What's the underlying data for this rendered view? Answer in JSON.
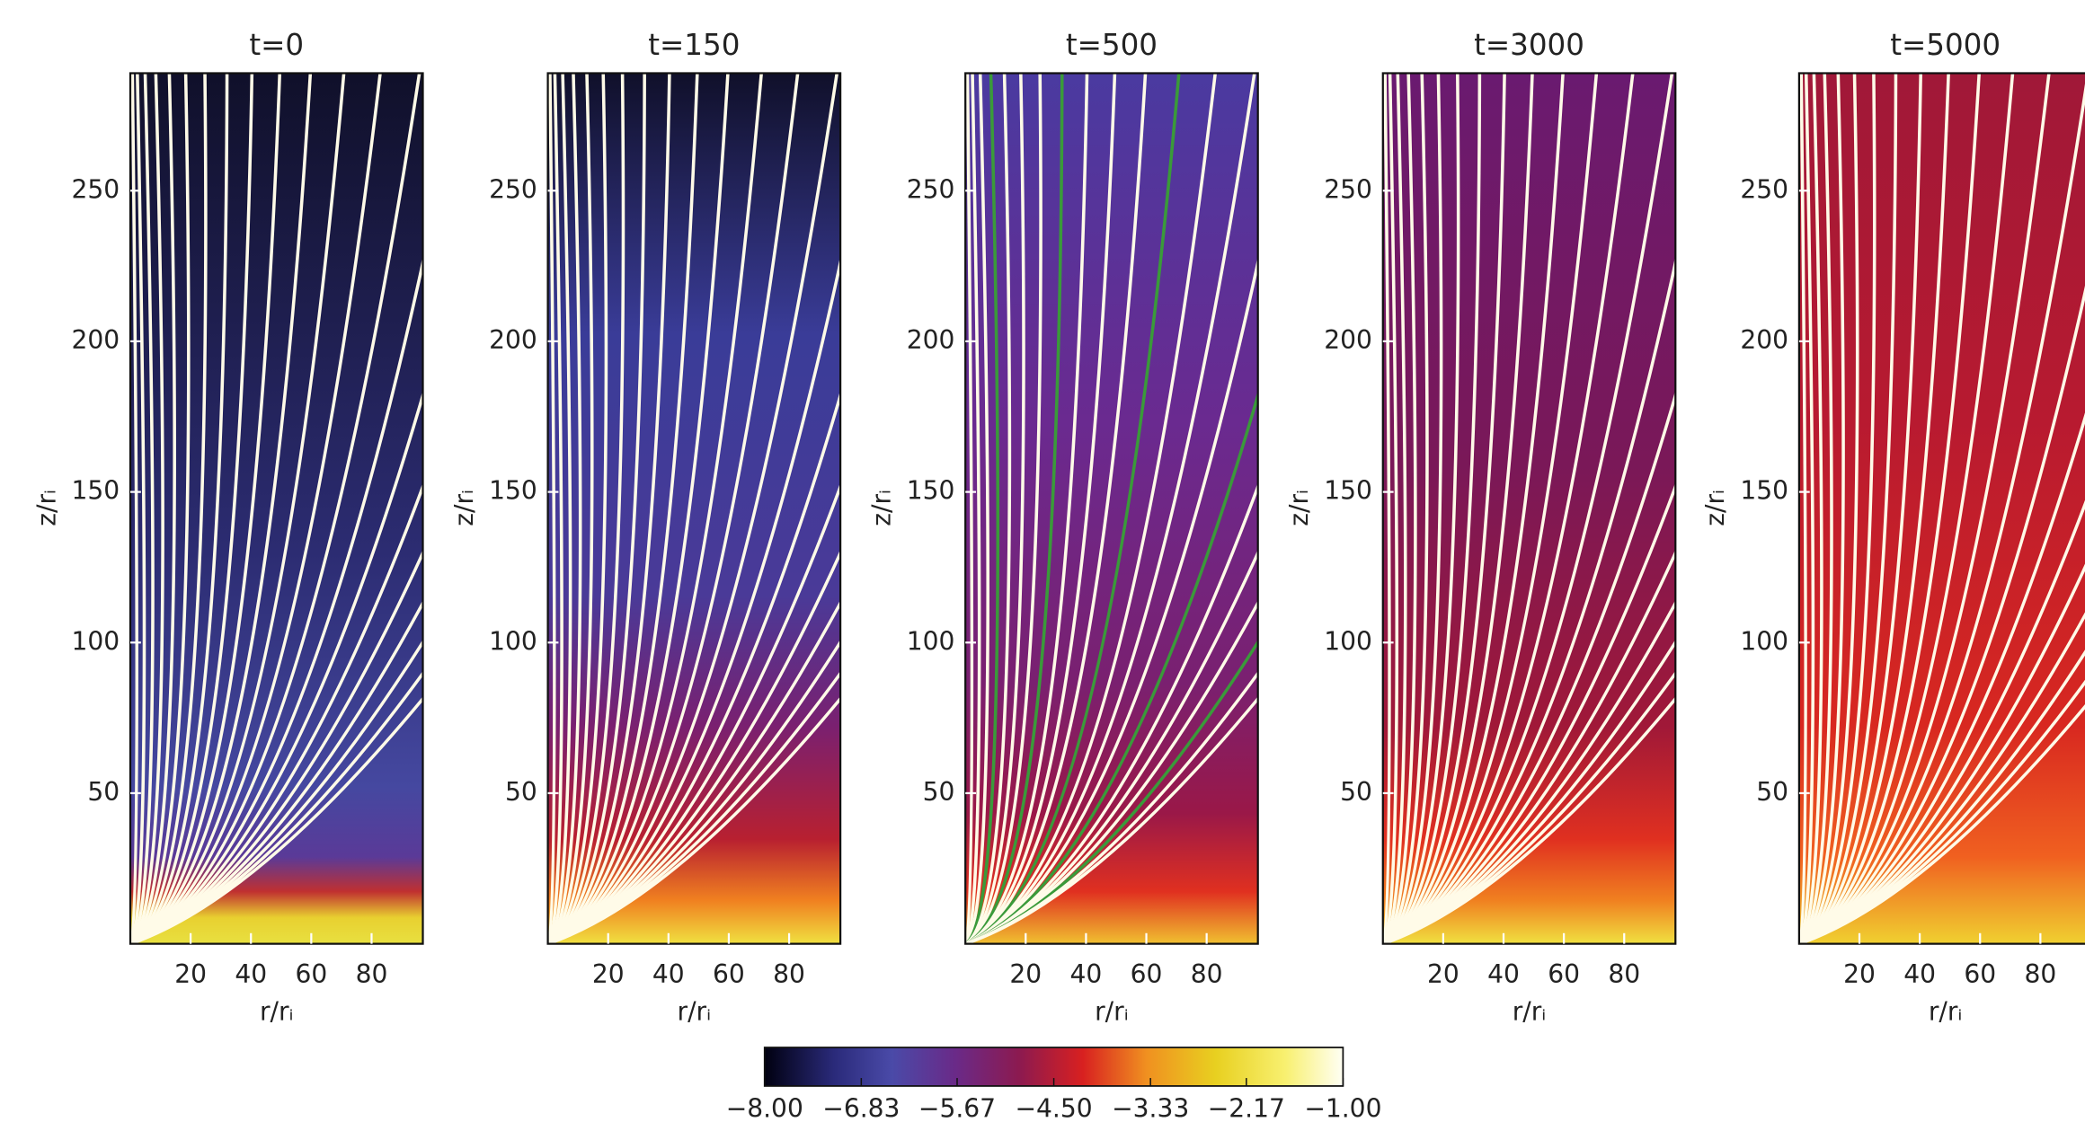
{
  "chart_data": [
    {
      "type": "heatmap",
      "title": "t=0",
      "xlabel": "r/rᵢ",
      "ylabel": "z/rᵢ",
      "xlim": [
        0,
        97
      ],
      "ylim": [
        0,
        289
      ],
      "xticks": [
        20,
        40,
        60,
        80
      ],
      "yticks": [
        50,
        100,
        150,
        200,
        250
      ]
    },
    {
      "type": "heatmap",
      "title": "t=150",
      "xlabel": "r/rᵢ",
      "ylabel": "z/rᵢ",
      "xlim": [
        0,
        97
      ],
      "ylim": [
        0,
        289
      ],
      "xticks": [
        20,
        40,
        60,
        80
      ],
      "yticks": [
        50,
        100,
        150,
        200,
        250
      ]
    },
    {
      "type": "heatmap",
      "title": "t=500",
      "xlabel": "r/rᵢ",
      "ylabel": "z/rᵢ",
      "xlim": [
        0,
        97
      ],
      "ylim": [
        0,
        289
      ],
      "xticks": [
        20,
        40,
        60,
        80
      ],
      "yticks": [
        50,
        100,
        150,
        200,
        250
      ]
    },
    {
      "type": "heatmap",
      "title": "t=3000",
      "xlabel": "r/rᵢ",
      "ylabel": "z/rᵢ",
      "xlim": [
        0,
        97
      ],
      "ylim": [
        0,
        289
      ],
      "xticks": [
        20,
        40,
        60,
        80
      ],
      "yticks": [
        50,
        100,
        150,
        200,
        250
      ]
    },
    {
      "type": "heatmap",
      "title": "t=5000",
      "xlabel": "r/rᵢ",
      "ylabel": "z/rᵢ",
      "xlim": [
        0,
        97
      ],
      "ylim": [
        0,
        289
      ],
      "xticks": [
        20,
        40,
        60,
        80
      ],
      "yticks": [
        50,
        100,
        150,
        200,
        250
      ]
    },
    {
      "type": "colorbar",
      "xlim": [
        -8,
        -1
      ],
      "xticks": [
        {
          "value": -8,
          "label": "−8.00"
        },
        {
          "value": -6.83,
          "label": "−6.83"
        },
        {
          "value": -5.67,
          "label": "−5.67"
        },
        {
          "value": -4.5,
          "label": "−4.50"
        },
        {
          "value": -3.33,
          "label": "−3.33"
        },
        {
          "value": -2.17,
          "label": "−2.17"
        },
        {
          "value": -1,
          "label": "−1.00"
        }
      ]
    }
  ]
}
